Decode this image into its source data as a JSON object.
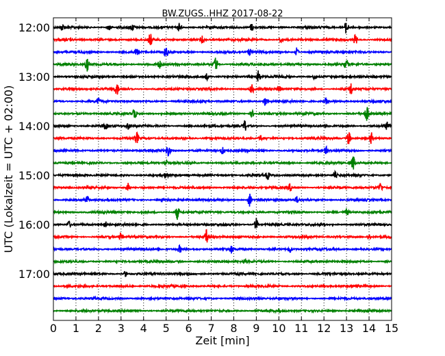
{
  "chart_data": {
    "type": "line",
    "title": "BW.ZUGS..HHZ 2017-08-22",
    "xlabel": "Zeit  [min]",
    "ylabel": "UTC (Lokalzeit = UTC + 02:00)",
    "xlim": [
      0,
      15
    ],
    "x_ticks": [
      "0",
      "1",
      "2",
      "3",
      "4",
      "5",
      "6",
      "7",
      "8",
      "9",
      "10",
      "11",
      "12",
      "13",
      "14",
      "15"
    ],
    "y_ticks": [
      "12:00",
      "13:00",
      "14:00",
      "15:00",
      "16:00",
      "17:00"
    ],
    "grid": "vertical dotted",
    "colors": [
      "#000000",
      "#ff0000",
      "#0000ff",
      "#008000"
    ],
    "traces": [
      {
        "start": "12:00",
        "color": "#000000",
        "spikes": [
          [
            0.4,
            0.35
          ],
          [
            2.5,
            0.4
          ],
          [
            3.5,
            0.35
          ],
          [
            5.6,
            0.6
          ],
          [
            8.8,
            0.4
          ],
          [
            13.0,
            0.8
          ]
        ]
      },
      {
        "start": "12:15",
        "color": "#ff0000",
        "spikes": [
          [
            4.3,
            0.7
          ],
          [
            6.6,
            0.35
          ],
          [
            10.1,
            0.35
          ],
          [
            13.4,
            0.6
          ]
        ]
      },
      {
        "start": "12:30",
        "color": "#0000ff",
        "spikes": [
          [
            3.7,
            0.4
          ],
          [
            5.0,
            0.6
          ],
          [
            8.7,
            0.35
          ],
          [
            10.8,
            0.5
          ]
        ]
      },
      {
        "start": "12:45",
        "color": "#008000",
        "spikes": [
          [
            1.5,
            0.7
          ],
          [
            4.7,
            0.4
          ],
          [
            7.2,
            0.8
          ],
          [
            13.0,
            0.5
          ]
        ]
      },
      {
        "start": "13:00",
        "color": "#000000",
        "spikes": [
          [
            6.8,
            0.35
          ],
          [
            9.1,
            0.7
          ],
          [
            11.6,
            0.35
          ]
        ]
      },
      {
        "start": "13:15",
        "color": "#ff0000",
        "spikes": [
          [
            2.8,
            0.7
          ],
          [
            8.8,
            0.5
          ],
          [
            10.0,
            0.4
          ],
          [
            13.2,
            0.7
          ]
        ]
      },
      {
        "start": "13:30",
        "color": "#0000ff",
        "spikes": [
          [
            2.0,
            0.35
          ],
          [
            9.4,
            0.5
          ],
          [
            12.1,
            0.35
          ]
        ]
      },
      {
        "start": "13:45",
        "color": "#008000",
        "spikes": [
          [
            3.6,
            0.7
          ],
          [
            8.8,
            0.4
          ],
          [
            13.9,
            0.8
          ]
        ]
      },
      {
        "start": "14:00",
        "color": "#000000",
        "spikes": [
          [
            2.3,
            0.4
          ],
          [
            3.3,
            0.35
          ],
          [
            8.5,
            0.6
          ],
          [
            14.8,
            0.4
          ]
        ]
      },
      {
        "start": "14:15",
        "color": "#ff0000",
        "spikes": [
          [
            3.7,
            0.6
          ],
          [
            9.2,
            0.35
          ],
          [
            13.1,
            0.8
          ],
          [
            14.1,
            0.6
          ]
        ]
      },
      {
        "start": "14:30",
        "color": "#0000ff",
        "spikes": [
          [
            5.1,
            0.7
          ],
          [
            7.5,
            0.35
          ],
          [
            12.1,
            0.35
          ]
        ]
      },
      {
        "start": "14:45",
        "color": "#008000",
        "spikes": [
          [
            5.0,
            0.35
          ],
          [
            13.3,
            0.8
          ]
        ]
      },
      {
        "start": "15:00",
        "color": "#000000",
        "spikes": [
          [
            5.0,
            0.35
          ],
          [
            9.5,
            0.4
          ],
          [
            12.5,
            0.35
          ]
        ]
      },
      {
        "start": "15:15",
        "color": "#ff0000",
        "spikes": [
          [
            3.3,
            0.7
          ],
          [
            10.5,
            0.4
          ],
          [
            14.5,
            0.5
          ]
        ]
      },
      {
        "start": "15:30",
        "color": "#0000ff",
        "spikes": [
          [
            1.5,
            0.35
          ],
          [
            8.7,
            0.7
          ],
          [
            10.8,
            0.35
          ]
        ]
      },
      {
        "start": "15:45",
        "color": "#008000",
        "spikes": [
          [
            5.5,
            0.8
          ],
          [
            13.0,
            0.35
          ]
        ]
      },
      {
        "start": "16:00",
        "color": "#000000",
        "spikes": [
          [
            0.7,
            0.35
          ],
          [
            2.3,
            0.35
          ],
          [
            9.0,
            0.7
          ]
        ]
      },
      {
        "start": "16:15",
        "color": "#ff0000",
        "spikes": [
          [
            3.0,
            0.4
          ],
          [
            6.8,
            0.8
          ],
          [
            14.0,
            0.35
          ]
        ]
      },
      {
        "start": "16:30",
        "color": "#0000ff",
        "spikes": [
          [
            5.6,
            0.4
          ],
          [
            7.9,
            0.35
          ],
          [
            10.5,
            0.35
          ]
        ]
      },
      {
        "start": "16:45",
        "color": "#008000",
        "spikes": [
          [
            8.5,
            0.3
          ]
        ]
      },
      {
        "start": "17:00",
        "color": "#000000",
        "spikes": [
          [
            3.2,
            0.3
          ]
        ]
      },
      {
        "start": "17:15",
        "color": "#ff0000",
        "spikes": []
      },
      {
        "start": "17:30",
        "color": "#0000ff",
        "spikes": []
      },
      {
        "start": "17:45",
        "color": "#008000",
        "spikes": []
      }
    ]
  }
}
